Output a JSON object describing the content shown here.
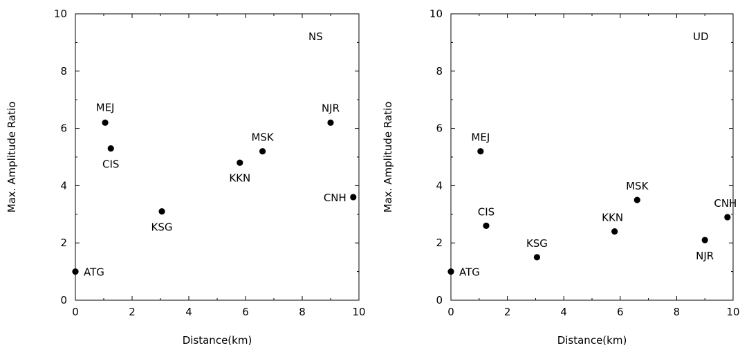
{
  "chart_data": [
    {
      "type": "scatter",
      "panel_label": "NS",
      "xlabel": "Distance(km)",
      "ylabel": "Max. Amplitude Ratio",
      "xlim": [
        0,
        10
      ],
      "ylim": [
        0,
        10
      ],
      "x_ticks": [
        "0",
        "2",
        "4",
        "6",
        "8",
        "10"
      ],
      "y_ticks": [
        "0",
        "2",
        "4",
        "6",
        "8",
        "10"
      ],
      "grid": false,
      "points": [
        {
          "label": "ATG",
          "x": 0.0,
          "y": 1.0
        },
        {
          "label": "MEJ",
          "x": 1.05,
          "y": 6.2
        },
        {
          "label": "CIS",
          "x": 1.25,
          "y": 5.3
        },
        {
          "label": "KSG",
          "x": 3.05,
          "y": 3.1
        },
        {
          "label": "KKN",
          "x": 5.8,
          "y": 4.8
        },
        {
          "label": "MSK",
          "x": 6.6,
          "y": 5.2
        },
        {
          "label": "NJR",
          "x": 9.0,
          "y": 6.2
        },
        {
          "label": "CNH",
          "x": 9.8,
          "y": 3.6
        }
      ]
    },
    {
      "type": "scatter",
      "panel_label": "UD",
      "xlabel": "Distance(km)",
      "ylabel": "Max. Amplitude Ratio",
      "xlim": [
        0,
        10
      ],
      "ylim": [
        0,
        10
      ],
      "x_ticks": [
        "0",
        "2",
        "4",
        "6",
        "8",
        "10"
      ],
      "y_ticks": [
        "0",
        "2",
        "4",
        "6",
        "8",
        "10"
      ],
      "grid": false,
      "points": [
        {
          "label": "ATG",
          "x": 0.0,
          "y": 1.0
        },
        {
          "label": "MEJ",
          "x": 1.05,
          "y": 5.2
        },
        {
          "label": "CIS",
          "x": 1.25,
          "y": 2.6
        },
        {
          "label": "KSG",
          "x": 3.05,
          "y": 1.5
        },
        {
          "label": "KKN",
          "x": 5.8,
          "y": 2.4
        },
        {
          "label": "MSK",
          "x": 6.6,
          "y": 3.5
        },
        {
          "label": "NJR",
          "x": 9.0,
          "y": 2.1
        },
        {
          "label": "CNH",
          "x": 9.8,
          "y": 2.9
        }
      ]
    }
  ]
}
